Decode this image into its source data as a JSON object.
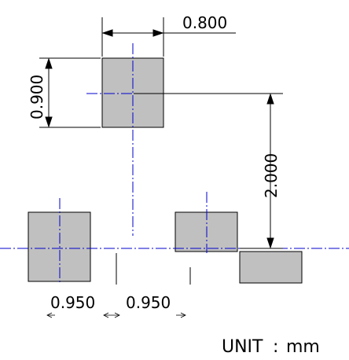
{
  "dimensions": {
    "pad_width": "0.800",
    "pad_height": "0.900",
    "vertical_offset": "2.000",
    "pitch_left": "0.950",
    "pitch_right": "0.950"
  },
  "units": {
    "label": "UNIT",
    "separator": ":",
    "value": "mm"
  },
  "colors": {
    "pad_fill": "#c0c0c0",
    "pad_stroke": "#000000",
    "center_line": "#0000cc",
    "dimension_line": "#000000"
  }
}
